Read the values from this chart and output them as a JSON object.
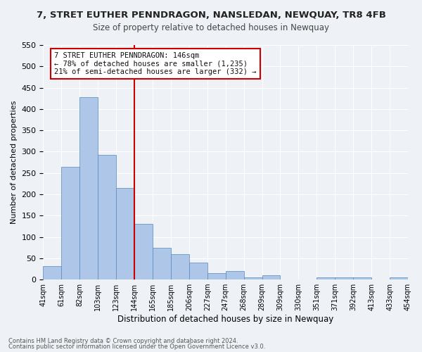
{
  "title": "7, STRET EUTHER PENNDRAGON, NANSLEDAN, NEWQUAY, TR8 4FB",
  "subtitle": "Size of property relative to detached houses in Newquay",
  "xlabel": "Distribution of detached houses by size in Newquay",
  "ylabel": "Number of detached properties",
  "bar_color": "#aec6e8",
  "bar_edge_color": "#5588bb",
  "background_color": "#eef2f7",
  "grid_color": "#ffffff",
  "bin_labels": [
    "41sqm",
    "61sqm",
    "82sqm",
    "103sqm",
    "123sqm",
    "144sqm",
    "165sqm",
    "185sqm",
    "206sqm",
    "227sqm",
    "247sqm",
    "268sqm",
    "289sqm",
    "309sqm",
    "330sqm",
    "351sqm",
    "371sqm",
    "392sqm",
    "413sqm",
    "433sqm",
    "454sqm"
  ],
  "bar_heights": [
    32,
    265,
    428,
    292,
    215,
    130,
    75,
    60,
    40,
    15,
    20,
    5,
    10,
    0,
    0,
    5,
    5,
    5,
    0,
    5
  ],
  "ylim": [
    0,
    550
  ],
  "yticks": [
    0,
    50,
    100,
    150,
    200,
    250,
    300,
    350,
    400,
    450,
    500,
    550
  ],
  "marker_line_color": "#cc0000",
  "annotation_title": "7 STRET EUTHER PENNDRAGON: 146sqm",
  "annotation_line1": "← 78% of detached houses are smaller (1,235)",
  "annotation_line2": "21% of semi-detached houses are larger (332) →",
  "annotation_box_color": "#ffffff",
  "annotation_box_edge": "#cc0000",
  "footer1": "Contains HM Land Registry data © Crown copyright and database right 2024.",
  "footer2": "Contains public sector information licensed under the Open Government Licence v3.0."
}
